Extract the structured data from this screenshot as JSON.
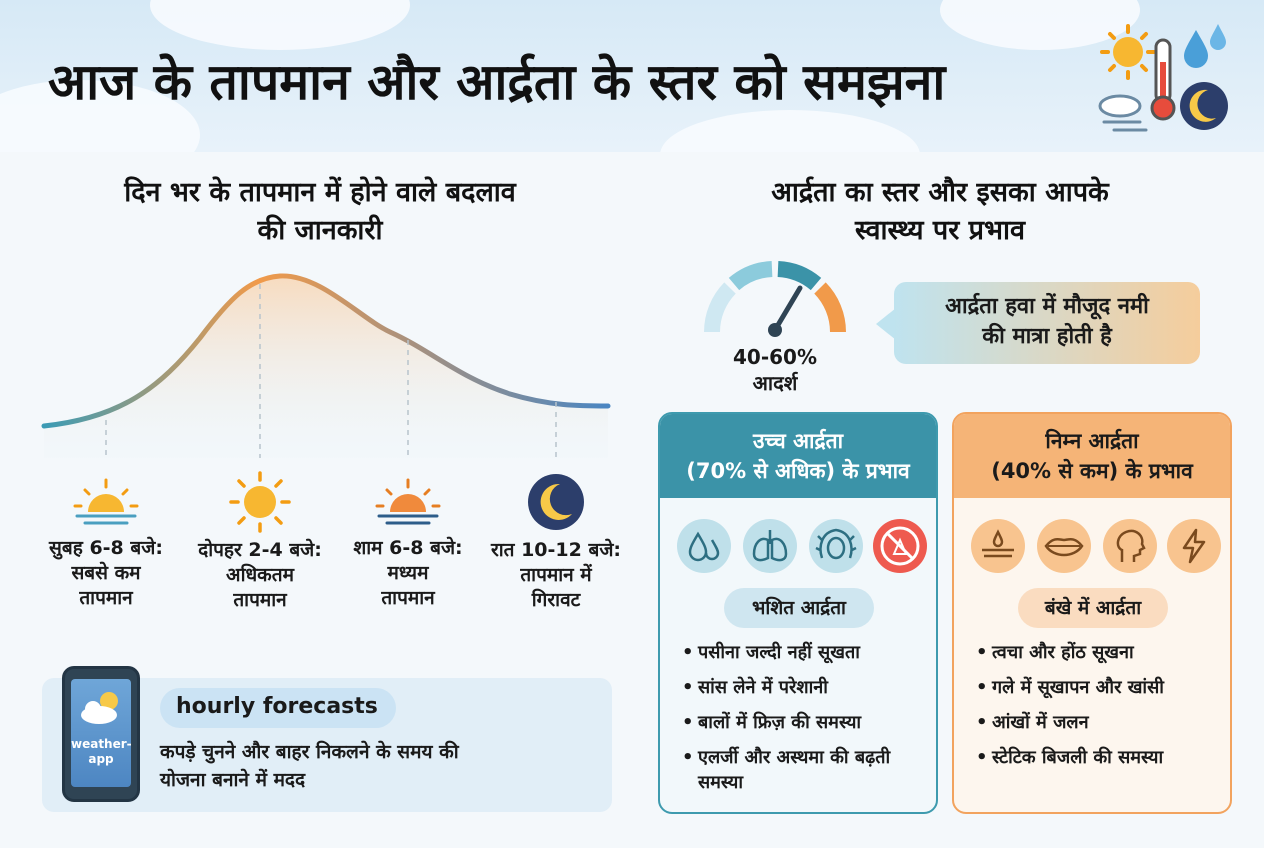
{
  "header": {
    "title": "आज के तापमान और आर्द्रता के स्तर को समझना"
  },
  "temperature": {
    "title_line1": "दिन भर के तापमान में होने वाले बदलाव",
    "title_line2": "की जानकारी",
    "times": [
      {
        "line1": "सुबह 6-8 बजे:",
        "line2": "सबसे कम",
        "line3": "तापमान",
        "icon": "sunrise-icon"
      },
      {
        "line1": "दोपहर 2-4 बजे:",
        "line2": "अधिकतम",
        "line3": "तापमान",
        "icon": "sun-icon"
      },
      {
        "line1": "शाम 6-8 बजे:",
        "line2": "मध्यम",
        "line3": "तापमान",
        "icon": "sunset-icon"
      },
      {
        "line1": "रात 10-12 बजे:",
        "line2": "तापमान में",
        "line3": "गिरावट",
        "icon": "moon-icon"
      }
    ],
    "app": {
      "phone_line1": "weather-",
      "phone_line2": "app",
      "pill": "hourly forecasts",
      "desc_line1": "कपड़े चुनने और बाहर निकलने के समय की",
      "desc_line2": "योजना बनाने में मदद"
    }
  },
  "humidity": {
    "title_line1": "आर्द्रता का स्तर और इसका आपके",
    "title_line2": "स्वास्थ्य पर प्रभाव",
    "gauge_value": "40-60%",
    "gauge_label": "आदर्श",
    "definition_line1": "आर्द्रता हवा में मौजूद नमी",
    "definition_line2": "की मात्रा होती है",
    "high": {
      "head_line1": "उच्च आर्द्रता",
      "head_line2": "(70% से अधिक) के प्रभाव",
      "sub": "भशित आर्द्रता",
      "icons": [
        "water-drops-icon",
        "lungs-icon",
        "frizzy-hair-icon",
        "no-allergy-icon"
      ],
      "bullets": [
        "पसीना जल्दी नहीं सूखता",
        "सांस लेने में परेशानी",
        "बालों में फ्रिज़ की समस्या",
        "एलर्जी और अस्थमा की बढ़ती समस्या"
      ]
    },
    "low": {
      "head_line1": "निम्न आर्द्रता",
      "head_line2": "(40% से कम) के प्रभाव",
      "sub": "बंखे में आर्द्रता",
      "icons": [
        "dry-skin-icon",
        "lips-icon",
        "throat-icon",
        "static-electricity-icon"
      ],
      "bullets": [
        "त्वचा और होंठ सूखना",
        "गले में सूखापन और खांसी",
        "आंखों में जलन",
        "स्टेटिक बिजली की समस्या"
      ]
    }
  },
  "colors": {
    "teal": "#3b93a8",
    "orange": "#f5b477",
    "sun": "#f7b731"
  }
}
